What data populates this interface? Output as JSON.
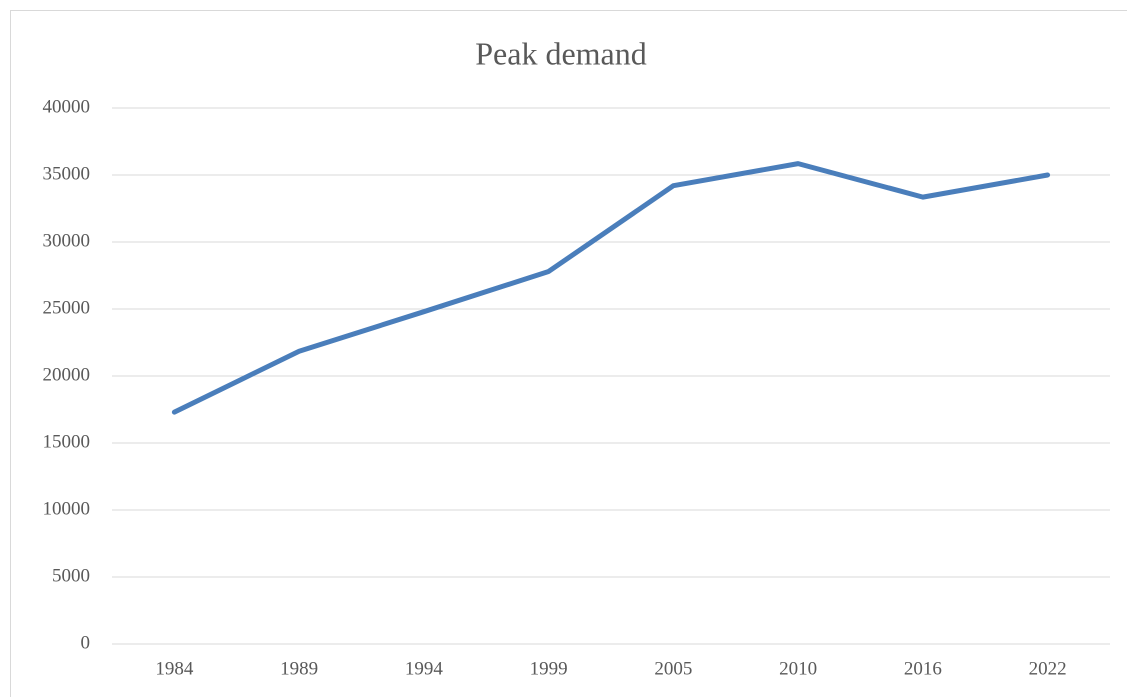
{
  "chart_data": {
    "type": "line",
    "title": "Peak demand",
    "categories": [
      "1984",
      "1989",
      "1994",
      "1999",
      "2005",
      "2010",
      "2016",
      "2022"
    ],
    "series": [
      {
        "name": "Peak demand",
        "color": "#4a7ebb",
        "values": [
          17300,
          21850,
          24800,
          27800,
          34200,
          35850,
          33350,
          35000
        ]
      }
    ],
    "ylim": [
      0,
      40000
    ],
    "yticks": [
      0,
      5000,
      10000,
      15000,
      20000,
      25000,
      30000,
      35000,
      40000
    ],
    "grid": true
  }
}
